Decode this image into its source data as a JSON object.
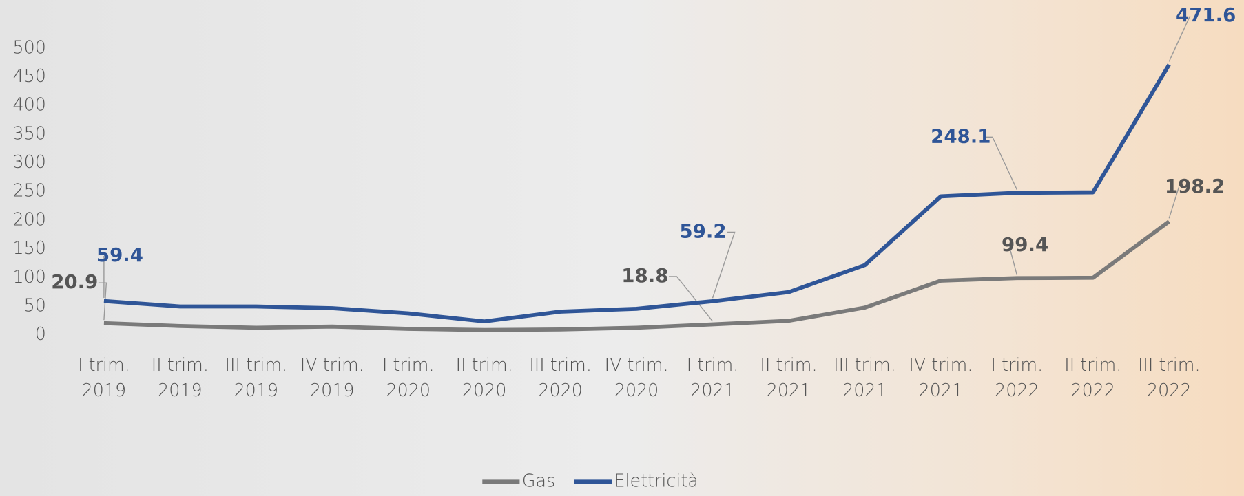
{
  "chart_data": {
    "type": "line",
    "categories": [
      [
        "I trim.",
        "2019"
      ],
      [
        "II trim.",
        "2019"
      ],
      [
        "III trim.",
        "2019"
      ],
      [
        "IV trim.",
        "2019"
      ],
      [
        "I trim.",
        "2020"
      ],
      [
        "II trim.",
        "2020"
      ],
      [
        "III trim.",
        "2020"
      ],
      [
        "IV trim.",
        "2020"
      ],
      [
        "I trim.",
        "2021"
      ],
      [
        "II trim.",
        "2021"
      ],
      [
        "III trim.",
        "2021"
      ],
      [
        "IV trim.",
        "2021"
      ],
      [
        "I trim.",
        "2022"
      ],
      [
        "II trim.",
        "2022"
      ],
      [
        "III trim.",
        "2022"
      ]
    ],
    "series": [
      {
        "name": "Gas",
        "color": "#7a7a7a",
        "values": [
          20.9,
          16,
          13,
          15,
          11,
          9,
          10,
          13,
          18.8,
          25,
          48,
          95,
          99.4,
          100,
          198.2
        ],
        "value_labels": [
          "20.9",
          null,
          null,
          null,
          null,
          null,
          null,
          null,
          "18.8",
          null,
          null,
          null,
          "99.4",
          null,
          "198.2"
        ]
      },
      {
        "name": "Elettricità",
        "color": "#2f5597",
        "values": [
          59.4,
          50,
          50,
          47,
          38,
          24,
          41,
          46,
          59.2,
          75,
          122,
          242,
          248.1,
          249,
          471.6
        ],
        "value_labels": [
          "59.4",
          null,
          null,
          null,
          null,
          null,
          null,
          null,
          "59.2",
          null,
          null,
          null,
          "248.1",
          null,
          "471.6"
        ]
      }
    ],
    "ylim": [
      0,
      500
    ],
    "yticks": [
      0,
      50,
      100,
      150,
      200,
      250,
      300,
      350,
      400,
      450,
      500
    ],
    "grid": false,
    "legend": "bottom"
  }
}
